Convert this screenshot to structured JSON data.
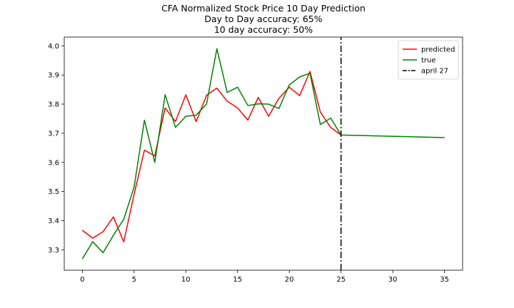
{
  "chart_data": {
    "type": "line",
    "title_lines": [
      "CFA Normalized Stock Price 10 Day Prediction",
      "Day to Day accuracy: 65%",
      "10 day accuracy: 50%"
    ],
    "xlabel": "",
    "ylabel": "",
    "xlim": [
      -1.75,
      36.75
    ],
    "ylim": [
      3.23,
      4.03
    ],
    "xticks": [
      0,
      5,
      10,
      15,
      20,
      25,
      30,
      35
    ],
    "xtick_labels": [
      "0",
      "5",
      "10",
      "15",
      "20",
      "25",
      "30",
      "35"
    ],
    "yticks": [
      3.3,
      3.4,
      3.5,
      3.6,
      3.7,
      3.8,
      3.9,
      4.0
    ],
    "ytick_labels": [
      "3.3",
      "3.4",
      "3.5",
      "3.6",
      "3.7",
      "3.8",
      "3.9",
      "4.0"
    ],
    "grid": false,
    "legend_position": "top-right",
    "series": [
      {
        "name": "predicted",
        "color": "#ff0000",
        "style": "solid",
        "x": [
          0,
          1,
          2,
          3,
          4,
          5,
          6,
          7,
          8,
          9,
          10,
          11,
          12,
          13,
          14,
          15,
          16,
          17,
          18,
          19,
          20,
          21,
          22,
          23,
          24,
          25
        ],
        "values": [
          3.367,
          3.34,
          3.362,
          3.413,
          3.327,
          3.49,
          3.642,
          3.622,
          3.787,
          3.74,
          3.832,
          3.74,
          3.83,
          3.855,
          3.81,
          3.787,
          3.745,
          3.823,
          3.758,
          3.82,
          3.858,
          3.829,
          3.912,
          3.773,
          3.72,
          3.694
        ]
      },
      {
        "name": "true",
        "color": "#008000",
        "style": "solid",
        "x": [
          0,
          1,
          2,
          3,
          4,
          5,
          6,
          7,
          8,
          9,
          10,
          11,
          12,
          13,
          14,
          15,
          16,
          17,
          18,
          19,
          20,
          21,
          22,
          23,
          24,
          25,
          35
        ],
        "values": [
          3.269,
          3.328,
          3.29,
          3.35,
          3.405,
          3.515,
          3.745,
          3.6,
          3.832,
          3.72,
          3.758,
          3.762,
          3.8,
          3.99,
          3.84,
          3.858,
          3.795,
          3.801,
          3.8,
          3.785,
          3.866,
          3.893,
          3.906,
          3.73,
          3.752,
          3.694,
          3.685
        ]
      },
      {
        "name": "april 27",
        "color": "#000000",
        "style": "dashdot",
        "x": [
          25,
          25
        ],
        "values": [
          3.23,
          4.03
        ]
      }
    ]
  }
}
